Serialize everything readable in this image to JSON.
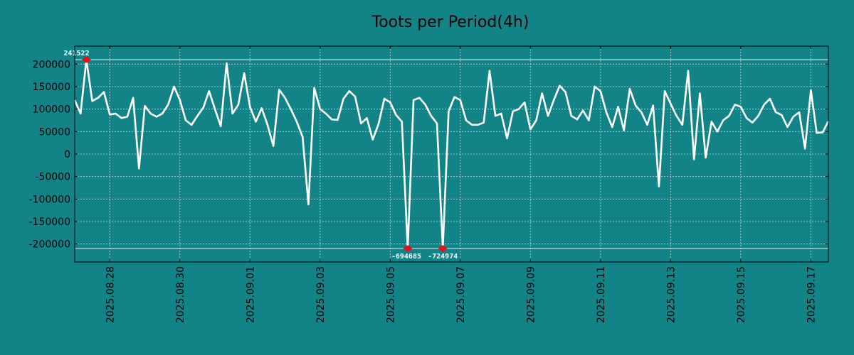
{
  "chart_data": {
    "type": "line",
    "title": "Toots per Period(4h)",
    "xlabel": "",
    "ylabel": "",
    "ylim": [
      -240000,
      240000
    ],
    "x_start": "2025-08-27T00:00",
    "x_step_hours": 4,
    "x_tick_labels": [
      "2025.08.28",
      "2025.08.30",
      "2025.09.01",
      "2025.09.03",
      "2025.09.05",
      "2025.09.07",
      "2025.09.09",
      "2025.09.11",
      "2025.09.13",
      "2025.09.15",
      "2025.09.17"
    ],
    "x_tick_dates": [
      "2025-08-28",
      "2025-08-30",
      "2025-09-01",
      "2025-09-03",
      "2025-09-05",
      "2025-09-07",
      "2025-09-09",
      "2025-09-11",
      "2025-09-13",
      "2025-09-15",
      "2025-09-17"
    ],
    "x_range": [
      "2025-08-27T00:00",
      "2025-09-17T12:00"
    ],
    "y_ticks": [
      200000,
      150000,
      100000,
      50000,
      0,
      -50000,
      -100000,
      -150000,
      -200000
    ],
    "y_tick_labels": [
      "200000",
      "150000",
      "100000",
      "50000",
      "0",
      "-50000",
      "-100000",
      "-150000",
      "-200000"
    ],
    "reference_lines": [
      210000,
      -210000
    ],
    "series": [
      {
        "name": "Toots",
        "values": [
          120000,
          90000,
          210000,
          118000,
          125000,
          138000,
          88000,
          90000,
          80000,
          83000,
          125000,
          -32000,
          107000,
          90000,
          83000,
          90000,
          110000,
          150000,
          120000,
          75000,
          65000,
          85000,
          103000,
          140000,
          100000,
          62000,
          202000,
          90000,
          110000,
          180000,
          105000,
          72000,
          102000,
          65000,
          18000,
          143000,
          125000,
          100000,
          72000,
          38000,
          -112000,
          147000,
          100000,
          90000,
          77000,
          76000,
          123000,
          140000,
          128000,
          68000,
          80000,
          32000,
          67000,
          123000,
          115000,
          87000,
          72000,
          -210000,
          120000,
          125000,
          110000,
          85000,
          68000,
          -210000,
          95000,
          127000,
          120000,
          75000,
          65000,
          65000,
          70000,
          185000,
          85000,
          90000,
          35000,
          95000,
          100000,
          115000,
          55000,
          75000,
          135000,
          85000,
          120000,
          152000,
          138000,
          85000,
          77000,
          97000,
          75000,
          150000,
          140000,
          93000,
          60000,
          105000,
          53000,
          145000,
          108000,
          93000,
          65000,
          108000,
          -72000,
          140000,
          112000,
          85000,
          65000,
          185000,
          -12000,
          135000,
          -8000,
          72000,
          50000,
          75000,
          85000,
          110000,
          105000,
          80000,
          70000,
          85000,
          110000,
          123000,
          93000,
          87000,
          60000,
          83000,
          93000,
          12000,
          142000,
          47000,
          48000,
          73000
        ]
      }
    ],
    "annotations": [
      {
        "label": "241522",
        "index": 2,
        "value": 210000,
        "position": "above"
      },
      {
        "label": "-694685",
        "index": 57,
        "value": -210000,
        "position": "below"
      },
      {
        "label": "-724974",
        "index": 63,
        "value": -210000,
        "position": "below"
      }
    ],
    "grid": true
  },
  "colors": {
    "background": "#128488",
    "line": "#ffffff",
    "marker": "#e8101a"
  }
}
